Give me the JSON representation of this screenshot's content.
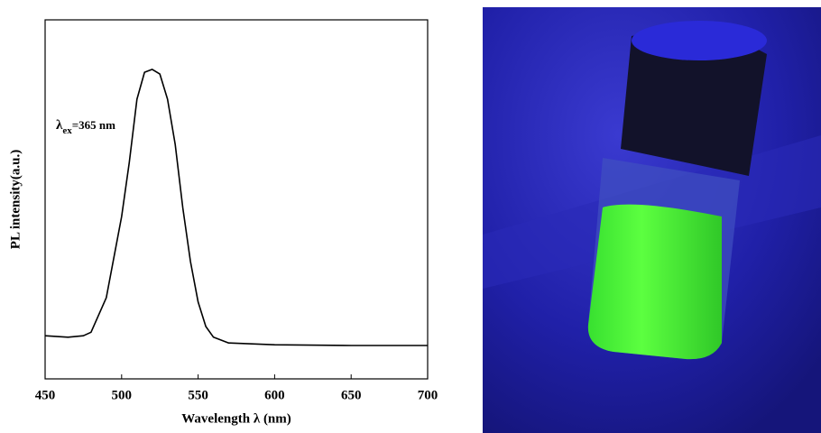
{
  "chart_data": {
    "type": "line",
    "x_label": "Wavelength λ (nm)",
    "y_label": "PL intensity(a.u.)",
    "annotation": {
      "symbol": "λ",
      "subscript": "ex",
      "text": "=365 nm"
    },
    "x": [
      450,
      465,
      475,
      480,
      490,
      500,
      505,
      510,
      515,
      520,
      525,
      530,
      535,
      540,
      545,
      550,
      555,
      560,
      570,
      600,
      650,
      700
    ],
    "values": [
      0.12,
      0.116,
      0.12,
      0.13,
      0.226,
      0.452,
      0.603,
      0.779,
      0.854,
      0.862,
      0.849,
      0.779,
      0.653,
      0.477,
      0.327,
      0.214,
      0.146,
      0.116,
      0.1,
      0.095,
      0.093,
      0.093
    ],
    "color": "#000000",
    "xlim": [
      450,
      700
    ],
    "xticks": [
      450,
      500,
      550,
      600,
      650,
      700
    ],
    "ylim": [
      0,
      1
    ]
  }
}
